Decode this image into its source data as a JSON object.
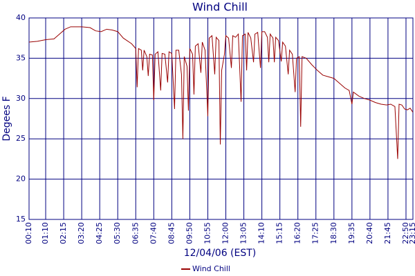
{
  "chart_data": {
    "type": "line",
    "title": "Wind Chill",
    "x_label": "12/04/06 (EST)",
    "y_label": "Degees F",
    "x": [
      "00:10",
      "00:40",
      "01:10",
      "01:40",
      "02:00",
      "02:20",
      "02:40",
      "03:20",
      "03:50",
      "04:10",
      "04:30",
      "04:50",
      "05:10",
      "05:30",
      "05:50",
      "06:20",
      "06:35",
      "06:40",
      "06:45",
      "06:55",
      "07:00",
      "07:05",
      "07:15",
      "07:20",
      "07:25",
      "07:35",
      "07:40",
      "07:45",
      "07:55",
      "08:05",
      "08:10",
      "08:20",
      "08:30",
      "08:35",
      "08:45",
      "08:55",
      "09:00",
      "09:10",
      "09:20",
      "09:25",
      "09:30",
      "09:40",
      "09:45",
      "09:50",
      "10:00",
      "10:05",
      "10:10",
      "10:20",
      "10:30",
      "10:35",
      "10:45",
      "10:55",
      "11:00",
      "11:10",
      "11:20",
      "11:25",
      "11:35",
      "11:40",
      "11:45",
      "11:55",
      "12:00",
      "12:10",
      "12:20",
      "12:25",
      "12:35",
      "12:45",
      "12:55",
      "13:00",
      "13:10",
      "13:15",
      "13:20",
      "13:30",
      "13:40",
      "13:45",
      "13:55",
      "14:05",
      "14:10",
      "14:20",
      "14:30",
      "14:35",
      "14:40",
      "14:50",
      "14:55",
      "15:00",
      "15:10",
      "15:20",
      "15:25",
      "15:35",
      "15:45",
      "15:50",
      "16:00",
      "16:10",
      "16:15",
      "16:25",
      "16:30",
      "16:35",
      "16:50",
      "17:10",
      "17:30",
      "17:50",
      "18:10",
      "18:30",
      "18:50",
      "19:10",
      "19:25",
      "19:35",
      "19:40",
      "20:00",
      "20:20",
      "20:40",
      "21:00",
      "21:20",
      "21:40",
      "21:55",
      "22:10",
      "22:20",
      "22:25",
      "22:35",
      "22:45",
      "22:55",
      "23:05",
      "23:15"
    ],
    "series": [
      {
        "name": "Wind Chill",
        "color": "#990000",
        "values": [
          37.0,
          37.1,
          37.3,
          37.4,
          38.0,
          38.6,
          38.9,
          38.9,
          38.8,
          38.4,
          38.3,
          38.6,
          38.5,
          38.3,
          37.5,
          36.8,
          36.2,
          31.4,
          36.2,
          36.0,
          33.5,
          36.0,
          35.2,
          32.8,
          35.5,
          35.4,
          29.8,
          35.5,
          35.8,
          31.0,
          35.6,
          35.5,
          32.0,
          35.8,
          35.6,
          28.7,
          36.0,
          36.0,
          33.0,
          25.0,
          35.2,
          34.0,
          28.5,
          36.2,
          35.5,
          30.5,
          36.5,
          36.8,
          33.2,
          37.0,
          36.0,
          27.8,
          37.5,
          37.8,
          33.0,
          37.6,
          37.2,
          24.3,
          33.5,
          35.5,
          37.8,
          37.5,
          33.8,
          37.8,
          37.6,
          38.0,
          29.6,
          37.8,
          38.0,
          33.5,
          38.2,
          37.5,
          34.5,
          38.0,
          38.2,
          33.8,
          38.3,
          38.3,
          37.6,
          34.5,
          38.0,
          37.5,
          34.5,
          37.6,
          37.2,
          34.6,
          37.0,
          36.5,
          33.0,
          36.0,
          35.5,
          30.8,
          35.0,
          35.2,
          26.5,
          35.2,
          35.0,
          34.2,
          33.5,
          32.9,
          32.7,
          32.5,
          31.9,
          31.3,
          31.0,
          29.3,
          30.8,
          30.3,
          30.0,
          29.8,
          29.5,
          29.3,
          29.2,
          29.3,
          29.0,
          22.5,
          29.3,
          29.2,
          28.7,
          28.6,
          28.8,
          28.3
        ]
      }
    ],
    "xlim": [
      "00:10",
      "23:15"
    ],
    "xticks": [
      "00:10",
      "01:10",
      "02:15",
      "03:20",
      "04:25",
      "05:30",
      "06:35",
      "07:40",
      "08:45",
      "09:50",
      "10:55",
      "12:00",
      "13:05",
      "14:10",
      "15:15",
      "16:20",
      "17:25",
      "18:30",
      "19:35",
      "20:40",
      "21:45",
      "22:50",
      "23:15"
    ],
    "ylim": [
      15,
      40
    ],
    "yticks": [
      15,
      20,
      25,
      30,
      35,
      40
    ],
    "grid": true,
    "legend": "bottom"
  }
}
